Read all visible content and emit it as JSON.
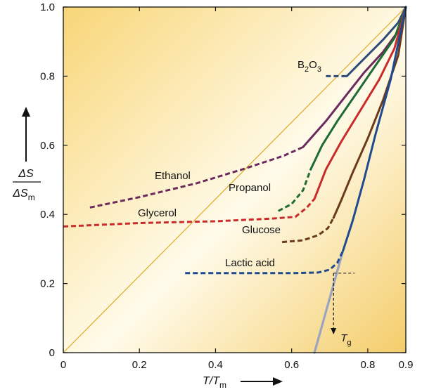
{
  "chart_data": {
    "type": "line",
    "xlabel": {
      "main": "T/T",
      "sub": "m"
    },
    "ylabel": {
      "numerator": "ΔS",
      "denominator_main": "ΔS",
      "denominator_sub": "m"
    },
    "xlim": [
      0,
      0.9
    ],
    "ylim": [
      0,
      1.0
    ],
    "x_ticks": [
      "0",
      "0.2",
      "0.4",
      "0.6",
      "0.8",
      "0.9"
    ],
    "x_tick_values": [
      0,
      0.2,
      0.4,
      0.6,
      0.8,
      0.9
    ],
    "y_ticks": [
      "0",
      "0.2",
      "0.4",
      "0.6",
      "0.8",
      "1.0"
    ],
    "y_tick_values": [
      0,
      0.2,
      0.4,
      0.6,
      0.8,
      1.0
    ],
    "grid": false,
    "background": {
      "gradient_from": "#f8d678",
      "gradient_mid": "#fffbea",
      "gradient_to": "#f4cd6a"
    },
    "diagonal_reference": {
      "from": [
        0,
        0
      ],
      "to": [
        0.9,
        1.0
      ],
      "color": "#e0a824"
    },
    "tg_marker": {
      "label_main": "T",
      "label_sub": "g",
      "x": 0.71,
      "y": 0.23,
      "color": "#111111"
    },
    "series": [
      {
        "name": "B2O3",
        "label_main": "B",
        "label_sub1": "2",
        "label_mid": "O",
        "label_sub2": "3",
        "color": "#2e4c7a",
        "dashed": [
          [
            0.69,
            0.8
          ],
          [
            0.745,
            0.8
          ]
        ],
        "solid": [
          [
            0.745,
            0.8
          ],
          [
            0.79,
            0.85
          ],
          [
            0.84,
            0.905
          ],
          [
            0.88,
            0.955
          ],
          [
            0.9,
            1.0
          ]
        ]
      },
      {
        "name": "Ethanol",
        "label": "Ethanol",
        "color": "#6b2a5e",
        "dashed": [
          [
            0.07,
            0.42
          ],
          [
            0.2,
            0.45
          ],
          [
            0.35,
            0.49
          ],
          [
            0.47,
            0.53
          ],
          [
            0.58,
            0.57
          ],
          [
            0.63,
            0.595
          ]
        ],
        "solid": [
          [
            0.63,
            0.595
          ],
          [
            0.69,
            0.67
          ],
          [
            0.74,
            0.74
          ],
          [
            0.79,
            0.81
          ],
          [
            0.84,
            0.87
          ],
          [
            0.88,
            0.93
          ],
          [
            0.9,
            1.0
          ]
        ]
      },
      {
        "name": "Propanol",
        "label": "Propanol",
        "color": "#1f6b34",
        "dashed": [
          [
            0.565,
            0.41
          ],
          [
            0.6,
            0.43
          ],
          [
            0.63,
            0.47
          ],
          [
            0.65,
            0.53
          ]
        ],
        "solid": [
          [
            0.65,
            0.53
          ],
          [
            0.68,
            0.6
          ],
          [
            0.72,
            0.67
          ],
          [
            0.77,
            0.75
          ],
          [
            0.82,
            0.83
          ],
          [
            0.87,
            0.91
          ],
          [
            0.9,
            1.0
          ]
        ]
      },
      {
        "name": "Glycerol",
        "label": "Glycerol",
        "color": "#c92b2b",
        "dashed": [
          [
            0.0,
            0.365
          ],
          [
            0.2,
            0.375
          ],
          [
            0.4,
            0.38
          ],
          [
            0.55,
            0.388
          ],
          [
            0.61,
            0.393
          ],
          [
            0.64,
            0.42
          ],
          [
            0.66,
            0.445
          ]
        ],
        "solid": [
          [
            0.66,
            0.445
          ],
          [
            0.69,
            0.53
          ],
          [
            0.73,
            0.61
          ],
          [
            0.78,
            0.7
          ],
          [
            0.83,
            0.79
          ],
          [
            0.87,
            0.88
          ],
          [
            0.9,
            1.0
          ]
        ]
      },
      {
        "name": "Glucose",
        "label": "Glucose",
        "color": "#6a3a1a",
        "dashed": [
          [
            0.575,
            0.32
          ],
          [
            0.63,
            0.325
          ],
          [
            0.67,
            0.34
          ],
          [
            0.695,
            0.36
          ],
          [
            0.71,
            0.39
          ]
        ],
        "solid": [
          [
            0.71,
            0.39
          ],
          [
            0.73,
            0.44
          ],
          [
            0.76,
            0.52
          ],
          [
            0.8,
            0.62
          ],
          [
            0.84,
            0.73
          ],
          [
            0.88,
            0.86
          ],
          [
            0.9,
            1.0
          ]
        ]
      },
      {
        "name": "Lactic acid",
        "label": "Lactic acid",
        "color": "#1f4a8f",
        "dashed": [
          [
            0.32,
            0.23
          ],
          [
            0.45,
            0.23
          ],
          [
            0.6,
            0.23
          ],
          [
            0.67,
            0.232
          ],
          [
            0.7,
            0.24
          ],
          [
            0.72,
            0.26
          ],
          [
            0.735,
            0.295
          ]
        ],
        "solid": [
          [
            0.735,
            0.295
          ],
          [
            0.76,
            0.38
          ],
          [
            0.79,
            0.5
          ],
          [
            0.82,
            0.63
          ],
          [
            0.86,
            0.79
          ],
          [
            0.9,
            1.0
          ]
        ],
        "extrapolation": [
          [
            0.66,
            0.0
          ],
          [
            0.735,
            0.295
          ]
        ],
        "extrapolation_color": "#9aa4c2"
      }
    ]
  }
}
